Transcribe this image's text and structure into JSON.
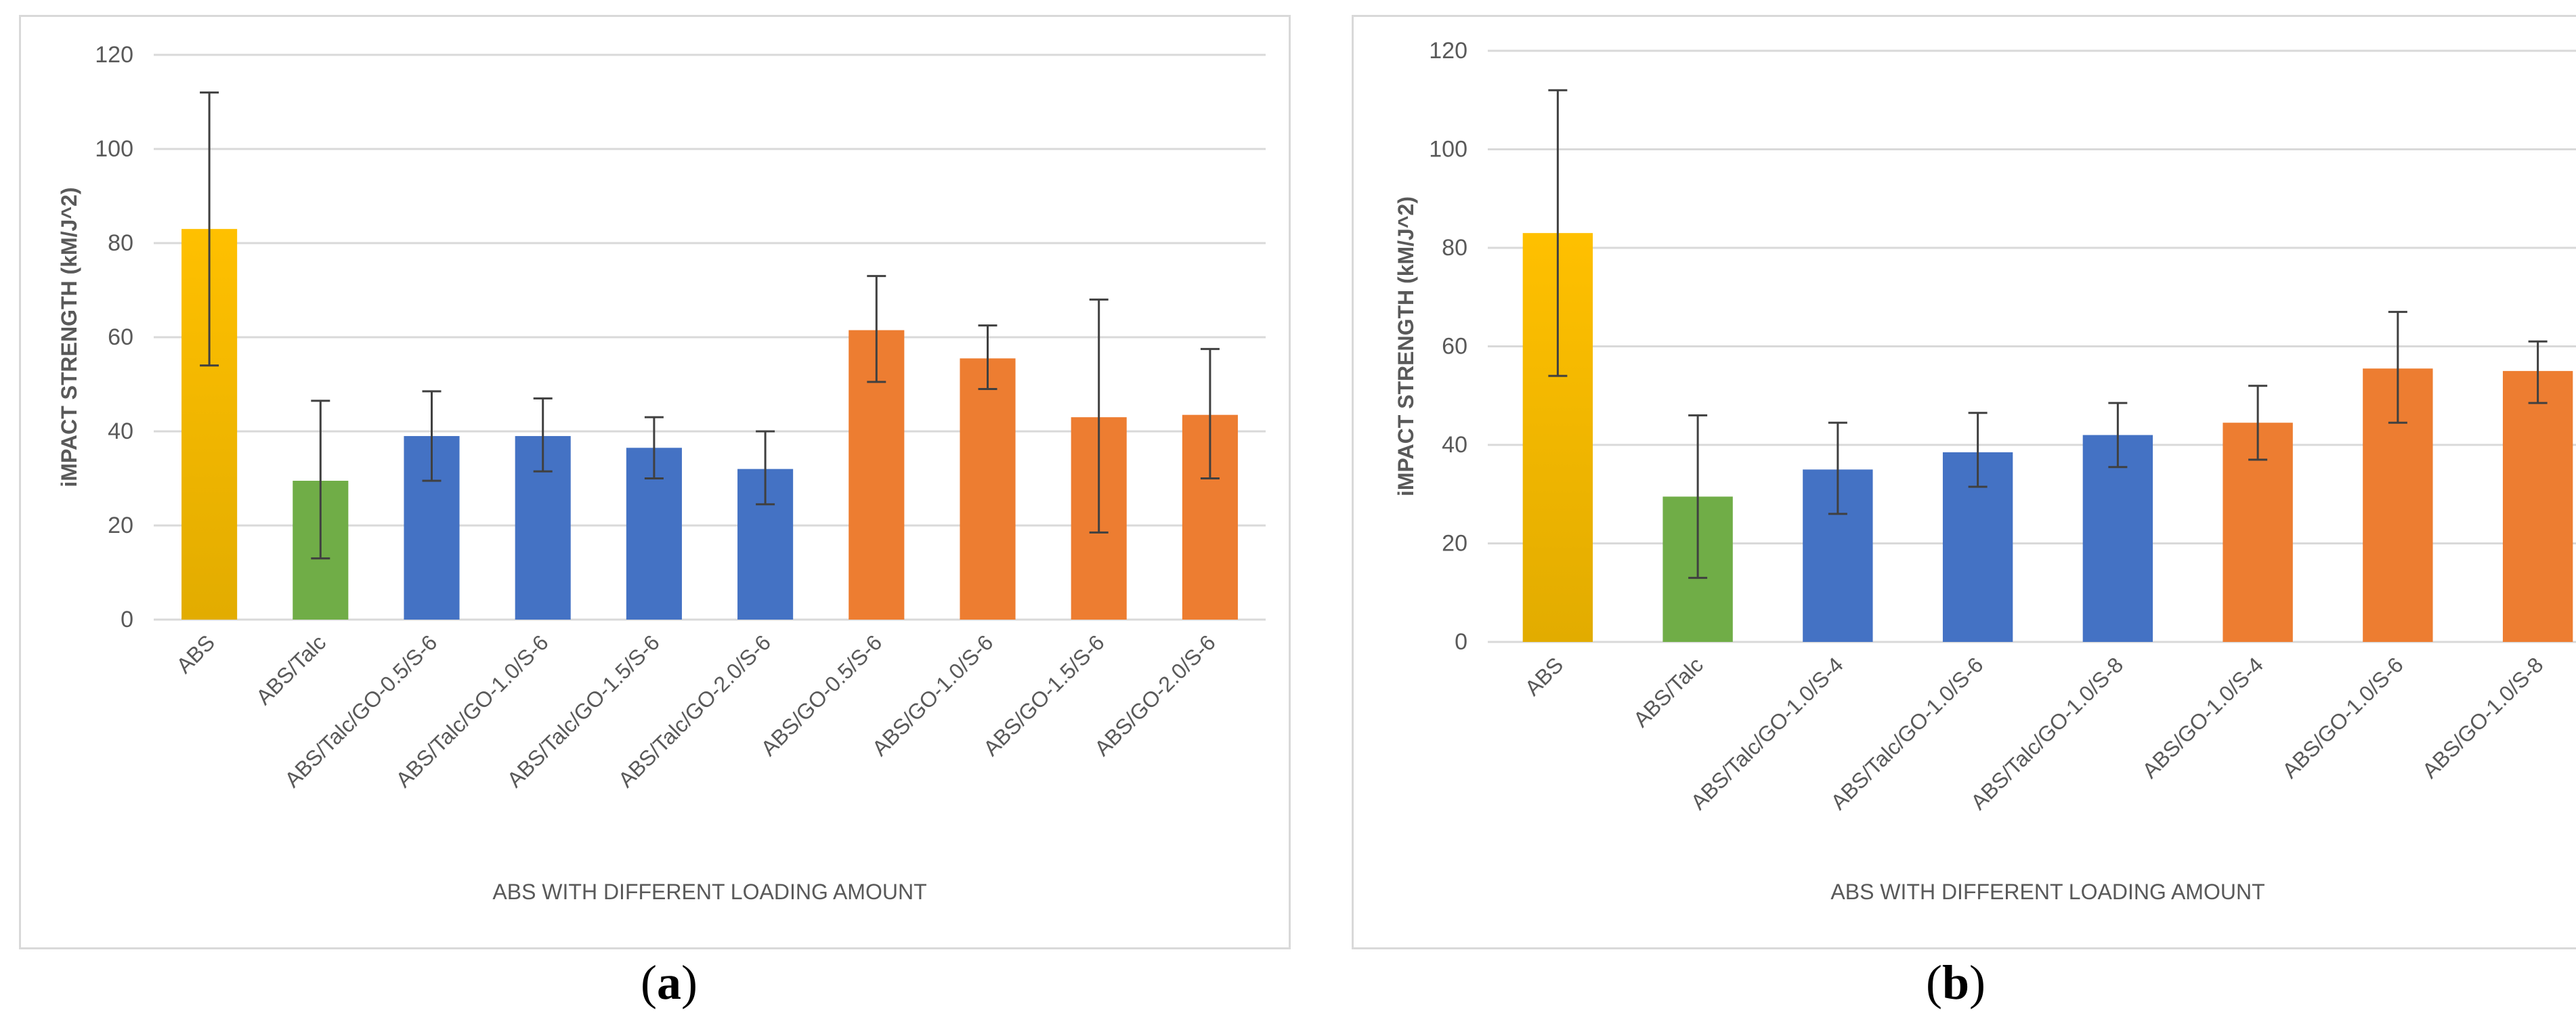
{
  "panels": [
    {
      "label_open": "(",
      "label_letter": "a",
      "label_close": ")"
    },
    {
      "label_open": "(",
      "label_letter": "b",
      "label_close": ")"
    }
  ],
  "colors": {
    "yellow_top": "#FFC000",
    "yellow_bottom": "#E2AC00",
    "green": "#70AD47",
    "blue": "#4472C4",
    "orange": "#ED7D31",
    "grid": "#D9D9D9",
    "text": "#595959",
    "error": "#404040"
  },
  "chart_data": [
    {
      "type": "bar",
      "title": "",
      "xlabel": "ABS WITH  DIFFERENT LOADING AMOUNT",
      "ylabel": "iMPACT STRENGTH (kM/J^2)",
      "ylim": [
        0,
        120
      ],
      "yticks": [
        0,
        20,
        40,
        60,
        80,
        100,
        120
      ],
      "grid": true,
      "categories": [
        "ABS",
        "ABS/Talc",
        "ABS/Talc/GO-0.5/S-6",
        "ABS/Talc/GO-1.0/S-6",
        "ABS/Talc/GO-1.5/S-6",
        "ABS/Talc/GO-2.0/S-6",
        "ABS/GO-0.5/S-6",
        "ABS/GO-1.0/S-6",
        "ABS/GO-1.5/S-6",
        "ABS/GO-2.0/S-6"
      ],
      "values": [
        83,
        29.5,
        39,
        39,
        36.5,
        32,
        61.5,
        55.5,
        43,
        43.5
      ],
      "error_low": [
        54,
        13,
        29.5,
        31.5,
        30,
        24.5,
        50.5,
        49,
        18.5,
        30
      ],
      "error_high": [
        112,
        46.5,
        48.5,
        47,
        43,
        40,
        73,
        62.5,
        68,
        57.5
      ],
      "bar_colors": [
        "yellow",
        "green",
        "blue",
        "blue",
        "blue",
        "blue",
        "orange",
        "orange",
        "orange",
        "orange"
      ]
    },
    {
      "type": "bar",
      "title": "",
      "xlabel": "ABS WITH  DIFFERENT LOADING AMOUNT",
      "ylabel": "iMPACT STRENGTH (kM/J^2)",
      "ylim": [
        0,
        120
      ],
      "yticks": [
        0,
        20,
        40,
        60,
        80,
        100,
        120
      ],
      "grid": true,
      "categories": [
        "ABS",
        "ABS/Talc",
        "ABS/Talc/GO-1.0/S-4",
        "ABS/Talc/GO-1.0/S-6",
        "ABS/Talc/GO-1.0/S-8",
        "ABS/GO-1.0/S-4",
        "ABS/GO-1.0/S-6",
        "ABS/GO-1.0/S-8"
      ],
      "values": [
        83,
        29.5,
        35,
        38.5,
        42,
        44.5,
        55.5,
        55
      ],
      "error_low": [
        54,
        13,
        26,
        31.5,
        35.5,
        37,
        44.5,
        48.5
      ],
      "error_high": [
        112,
        46,
        44.5,
        46.5,
        48.5,
        52,
        67,
        61
      ],
      "bar_colors": [
        "yellow",
        "green",
        "blue",
        "blue",
        "blue",
        "orange",
        "orange",
        "orange"
      ]
    }
  ]
}
